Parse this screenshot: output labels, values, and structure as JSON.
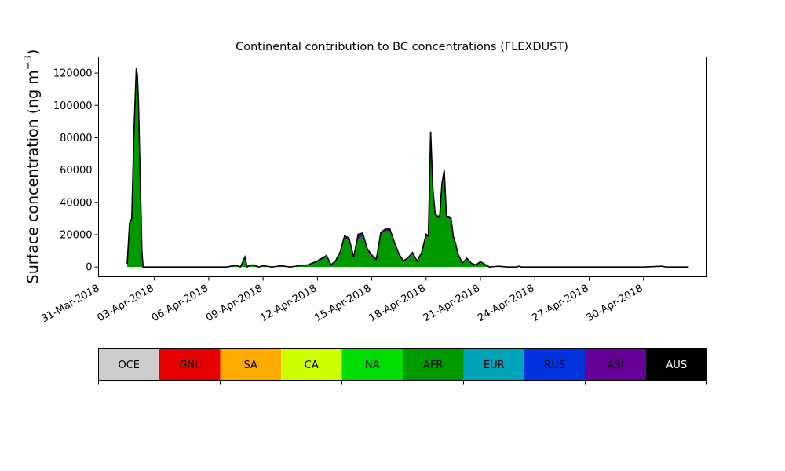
{
  "chart_data": {
    "type": "area",
    "title": "Continental contribution to BC concentrations (FLEXDUST)",
    "ylabel": "Surface concentration (ng m",
    "ylabel_exp": "−3",
    "ylabel_close": ")",
    "xlabel": "",
    "ylim": [
      -6000,
      130000
    ],
    "xlim": [
      "2018-03-30T22:00",
      "2018-05-03T12:00"
    ],
    "yticks": [
      0,
      20000,
      40000,
      60000,
      80000,
      100000,
      120000
    ],
    "ytick_labels": [
      "0",
      "20000",
      "40000",
      "60000",
      "80000",
      "100000",
      "120000"
    ],
    "xticks": [
      "2018-03-31",
      "2018-04-03",
      "2018-04-06",
      "2018-04-09",
      "2018-04-12",
      "2018-04-15",
      "2018-04-18",
      "2018-04-21",
      "2018-04-24",
      "2018-04-27",
      "2018-04-30"
    ],
    "xtick_labels": [
      "31-Mar-2018",
      "03-Apr-2018",
      "06-Apr-2018",
      "09-Apr-2018",
      "12-Apr-2018",
      "15-Apr-2018",
      "18-Apr-2018",
      "21-Apr-2018",
      "24-Apr-2018",
      "27-Apr-2018",
      "30-Apr-2018"
    ],
    "grid": false,
    "legend_position": "below",
    "x": [
      "2018-04-01T12:00",
      "2018-04-01T15:00",
      "2018-04-01T18:00",
      "2018-04-01T21:00",
      "2018-04-02T00:00",
      "2018-04-02T01:30",
      "2018-04-02T03:00",
      "2018-04-02T04:30",
      "2018-04-02T06:00",
      "2018-04-02T07:30",
      "2018-04-02T09:00",
      "2018-04-02T12:00",
      "2018-04-02T15:00",
      "2018-04-03T00:00",
      "2018-04-04T00:00",
      "2018-04-05T00:00",
      "2018-04-06T00:00",
      "2018-04-07T00:00",
      "2018-04-07T12:00",
      "2018-04-07T18:00",
      "2018-04-08T00:00",
      "2018-04-08T03:00",
      "2018-04-08T06:00",
      "2018-04-08T12:00",
      "2018-04-08T18:00",
      "2018-04-09T00:00",
      "2018-04-09T12:00",
      "2018-04-10T00:00",
      "2018-04-10T12:00",
      "2018-04-11T00:00",
      "2018-04-11T12:00",
      "2018-04-12T00:00",
      "2018-04-12T12:00",
      "2018-04-12T18:00",
      "2018-04-13T00:00",
      "2018-04-13T06:00",
      "2018-04-13T12:00",
      "2018-04-13T18:00",
      "2018-04-14T00:00",
      "2018-04-14T06:00",
      "2018-04-14T12:00",
      "2018-04-14T18:00",
      "2018-04-15T00:00",
      "2018-04-15T06:00",
      "2018-04-15T12:00",
      "2018-04-15T18:00",
      "2018-04-16T00:00",
      "2018-04-16T06:00",
      "2018-04-16T12:00",
      "2018-04-16T18:00",
      "2018-04-17T00:00",
      "2018-04-17T06:00",
      "2018-04-17T12:00",
      "2018-04-17T18:00",
      "2018-04-18T00:00",
      "2018-04-18T03:00",
      "2018-04-18T06:00",
      "2018-04-18T09:00",
      "2018-04-18T12:00",
      "2018-04-18T15:00",
      "2018-04-18T18:00",
      "2018-04-18T21:00",
      "2018-04-19T00:00",
      "2018-04-19T03:00",
      "2018-04-19T06:00",
      "2018-04-19T09:00",
      "2018-04-19T12:00",
      "2018-04-19T15:00",
      "2018-04-19T18:00",
      "2018-04-20T00:00",
      "2018-04-20T06:00",
      "2018-04-20T12:00",
      "2018-04-20T18:00",
      "2018-04-21T00:00",
      "2018-04-21T12:00",
      "2018-04-22T00:00",
      "2018-04-22T12:00",
      "2018-04-22T18:00",
      "2018-04-23T00:00",
      "2018-04-23T03:00",
      "2018-04-23T06:00",
      "2018-04-24T00:00",
      "2018-04-26T00:00",
      "2018-04-28T00:00",
      "2018-04-30T00:00",
      "2018-05-01T00:00",
      "2018-05-01T06:00",
      "2018-05-01T12:00",
      "2018-05-02T00:00",
      "2018-05-02T12:00"
    ],
    "series": [
      {
        "name": "AFR",
        "color": "#009900",
        "values": [
          2000,
          27000,
          30000,
          85000,
          122000,
          118000,
          100000,
          70000,
          40000,
          10000,
          0,
          0,
          0,
          0,
          0,
          0,
          0,
          0,
          800,
          0,
          5500,
          0,
          800,
          1000,
          0,
          500,
          0,
          500,
          0,
          500,
          1000,
          3000,
          6000,
          1000,
          3000,
          8000,
          18000,
          16000,
          4000,
          17000,
          19000,
          10000,
          6000,
          4000,
          20000,
          22000,
          22000,
          14000,
          7000,
          3000,
          5000,
          8000,
          3000,
          8000,
          19000,
          18000,
          80000,
          45000,
          31000,
          30000,
          30000,
          50000,
          58000,
          30000,
          30000,
          29000,
          18000,
          14000,
          8000,
          2000,
          5000,
          2000,
          1000,
          3000,
          0,
          500,
          0,
          0,
          0,
          500,
          0,
          0,
          0,
          0,
          0,
          500,
          0,
          0,
          0,
          0
        ]
      },
      {
        "name": "ASI",
        "color": "#660099",
        "values": [
          0,
          0,
          0,
          0,
          500,
          500,
          500,
          0,
          0,
          0,
          0,
          0,
          0,
          0,
          0,
          0,
          0,
          0,
          200,
          0,
          500,
          0,
          200,
          200,
          0,
          200,
          0,
          200,
          0,
          200,
          300,
          500,
          800,
          300,
          500,
          800,
          1000,
          1200,
          1500,
          2500,
          1500,
          1000,
          1000,
          500,
          1000,
          1000,
          1000,
          1000,
          800,
          600,
          500,
          700,
          500,
          700,
          1000,
          1000,
          3000,
          2500,
          1500,
          1200,
          1200,
          1500,
          1500,
          1000,
          1000,
          1000,
          800,
          500,
          400,
          300,
          300,
          200,
          200,
          200,
          0,
          0,
          0,
          0,
          0,
          0,
          0,
          0,
          0,
          0,
          0,
          0,
          0,
          0,
          0,
          0
        ]
      },
      {
        "name": "RUS",
        "color": "#0033cc",
        "values": [
          0,
          0,
          0,
          0,
          300,
          300,
          300,
          0,
          0,
          0,
          0,
          0,
          0,
          0,
          0,
          0,
          0,
          0,
          100,
          0,
          200,
          0,
          100,
          100,
          0,
          100,
          0,
          100,
          0,
          100,
          100,
          200,
          300,
          100,
          200,
          300,
          400,
          500,
          600,
          800,
          500,
          400,
          400,
          200,
          400,
          400,
          400,
          300,
          200,
          200,
          200,
          200,
          200,
          200,
          300,
          300,
          800,
          600,
          400,
          300,
          300,
          400,
          400,
          300,
          300,
          300,
          200,
          200,
          100,
          100,
          100,
          100,
          100,
          100,
          0,
          0,
          0,
          0,
          0,
          0,
          0,
          0,
          0,
          0,
          0,
          0,
          0,
          0,
          0,
          0
        ]
      }
    ],
    "total": [
      2000,
      27000,
      30000,
      85000,
      122800,
      118800,
      100800,
      70000,
      40000,
      10000,
      0,
      0,
      0,
      0,
      0,
      0,
      0,
      0,
      1100,
      0,
      6200,
      0,
      1100,
      1300,
      0,
      800,
      0,
      800,
      0,
      800,
      1400,
      3700,
      7100,
      1400,
      3700,
      9100,
      19400,
      17700,
      6100,
      20300,
      21000,
      11400,
      7400,
      4700,
      21400,
      23400,
      23400,
      15300,
      8000,
      3800,
      5700,
      8900,
      3700,
      8900,
      20300,
      19300,
      83800,
      48100,
      32900,
      31500,
      31500,
      51900,
      59900,
      31300,
      31300,
      30300,
      19000,
      14700,
      8500,
      2400,
      5400,
      2300,
      1300,
      3300,
      0,
      500,
      0,
      0,
      0,
      500,
      0,
      0,
      0,
      0,
      0,
      500,
      0,
      0,
      0,
      0
    ],
    "legend": [
      {
        "label": "OCE",
        "color": "#cccccc",
        "text_color": "#000000"
      },
      {
        "label": "GNL",
        "color": "#e60000",
        "text_color": "#000000"
      },
      {
        "label": "SA",
        "color": "#ffaa00",
        "text_color": "#000000"
      },
      {
        "label": "CA",
        "color": "#ccff00",
        "text_color": "#000000"
      },
      {
        "label": "NA",
        "color": "#00dd00",
        "text_color": "#000000"
      },
      {
        "label": "AFR",
        "color": "#009900",
        "text_color": "#000000"
      },
      {
        "label": "EUR",
        "color": "#00a3b8",
        "text_color": "#000000"
      },
      {
        "label": "RUS",
        "color": "#0033dd",
        "text_color": "#000000"
      },
      {
        "label": "ASI",
        "color": "#660099",
        "text_color": "#000000"
      },
      {
        "label": "AUS",
        "color": "#000000",
        "text_color": "#ffffff"
      }
    ]
  }
}
